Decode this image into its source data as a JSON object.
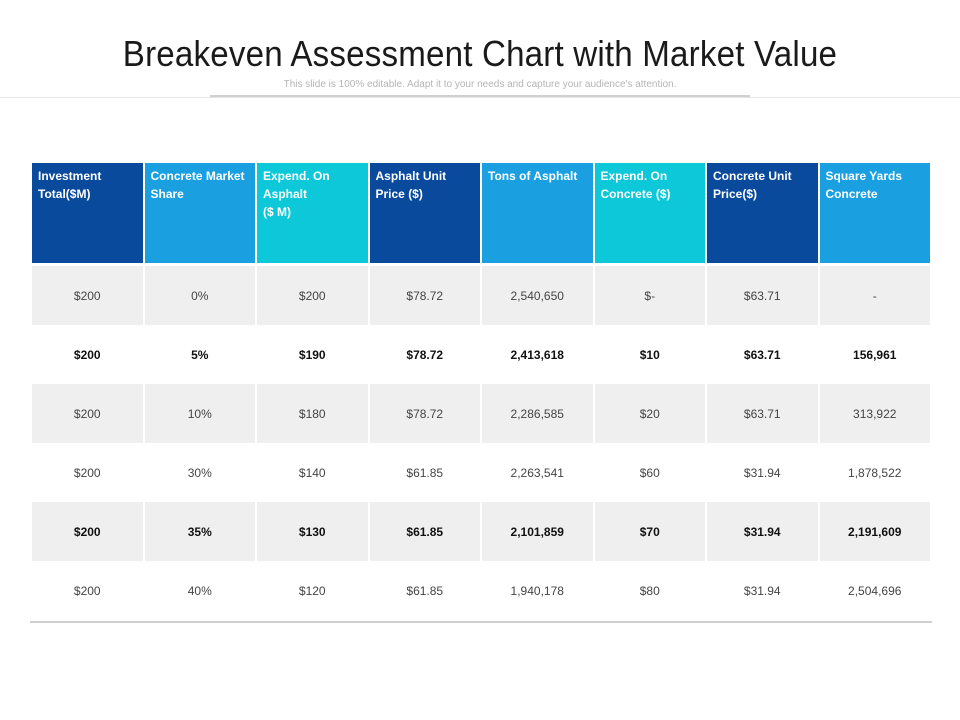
{
  "header": {
    "title": "Breakeven Assessment Chart with Market Value",
    "subtitle": "This slide is 100% editable. Adapt it to your needs and capture your audience's attention."
  },
  "colors": {
    "dark_blue": "#0a4a9c",
    "mid_blue": "#1aa0e0",
    "cyan": "#0cc8d8",
    "row_shade": "#efefef"
  },
  "table": {
    "columns": [
      {
        "label": "Investment Total($M)",
        "color": "#0a4a9c"
      },
      {
        "label": "Concrete Market Share",
        "color": "#1aa0e0"
      },
      {
        "label": "Expend. On Asphalt\n($ M)",
        "color": "#0cc8d8"
      },
      {
        "label": "Asphalt Unit Price ($)",
        "color": "#0a4a9c"
      },
      {
        "label": "Tons of Asphalt",
        "color": "#1aa0e0"
      },
      {
        "label": "Expend. On Concrete ($)",
        "color": "#0cc8d8"
      },
      {
        "label": "Concrete Unit Price($)",
        "color": "#0a4a9c"
      },
      {
        "label": "Square Yards Concrete",
        "color": "#1aa0e0"
      }
    ],
    "rows": [
      {
        "style": "shade",
        "bold": false,
        "cells": [
          "$200",
          "0%",
          "$200",
          "$78.72",
          "2,540,650",
          "$-",
          "$63.71",
          "-"
        ]
      },
      {
        "style": "plain",
        "bold": true,
        "cells": [
          "$200",
          "5%",
          "$190",
          "$78.72",
          "2,413,618",
          "$10",
          "$63.71",
          "156,961"
        ]
      },
      {
        "style": "shade",
        "bold": false,
        "cells": [
          "$200",
          "10%",
          "$180",
          "$78.72",
          "2,286,585",
          "$20",
          "$63.71",
          "313,922"
        ]
      },
      {
        "style": "plain",
        "bold": false,
        "cells": [
          "$200",
          "30%",
          "$140",
          "$61.85",
          "2,263,541",
          "$60",
          "$31.94",
          "1,878,522"
        ]
      },
      {
        "style": "shade",
        "bold": true,
        "cells": [
          "$200",
          "35%",
          "$130",
          "$61.85",
          "2,101,859",
          "$70",
          "$31.94",
          "2,191,609"
        ]
      },
      {
        "style": "plain",
        "bold": false,
        "cells": [
          "$200",
          "40%",
          "$120",
          "$61.85",
          "1,940,178",
          "$80",
          "$31.94",
          "2,504,696"
        ]
      }
    ]
  }
}
